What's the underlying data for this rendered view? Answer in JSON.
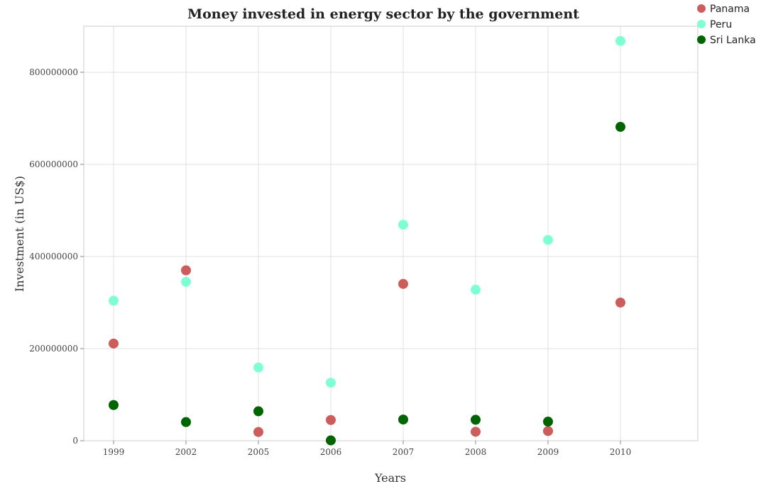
{
  "chart_data": {
    "type": "scatter",
    "title": "Money invested in energy sector by the government",
    "xlabel": "Years",
    "ylabel": "Investment (in US$)",
    "categories": [
      "1999",
      "2002",
      "2005",
      "2006",
      "2007",
      "2008",
      "2009",
      "2010"
    ],
    "ylim": [
      0,
      900000000
    ],
    "yticks": [
      0,
      200000000,
      400000000,
      600000000,
      800000000
    ],
    "ytick_labels": [
      "0",
      "200000000",
      "400000000",
      "600000000",
      "800000000"
    ],
    "grid": true,
    "legend_position": "top-right",
    "series": [
      {
        "name": "Panama",
        "color": "#cd5c5c",
        "values": [
          211000000,
          370000000,
          19000000,
          45000000,
          340500000,
          19500000,
          21000000,
          300000000
        ]
      },
      {
        "name": "Peru",
        "color": "#7fffd4",
        "values": [
          304000000,
          345000000,
          159000000,
          126000000,
          469000000,
          328000000,
          436000000,
          868000000
        ]
      },
      {
        "name": "Sri Lanka",
        "color": "#006400",
        "values": [
          77500000,
          40500000,
          64000000,
          700000,
          46000000,
          45500000,
          41500000,
          681500000
        ]
      }
    ]
  }
}
